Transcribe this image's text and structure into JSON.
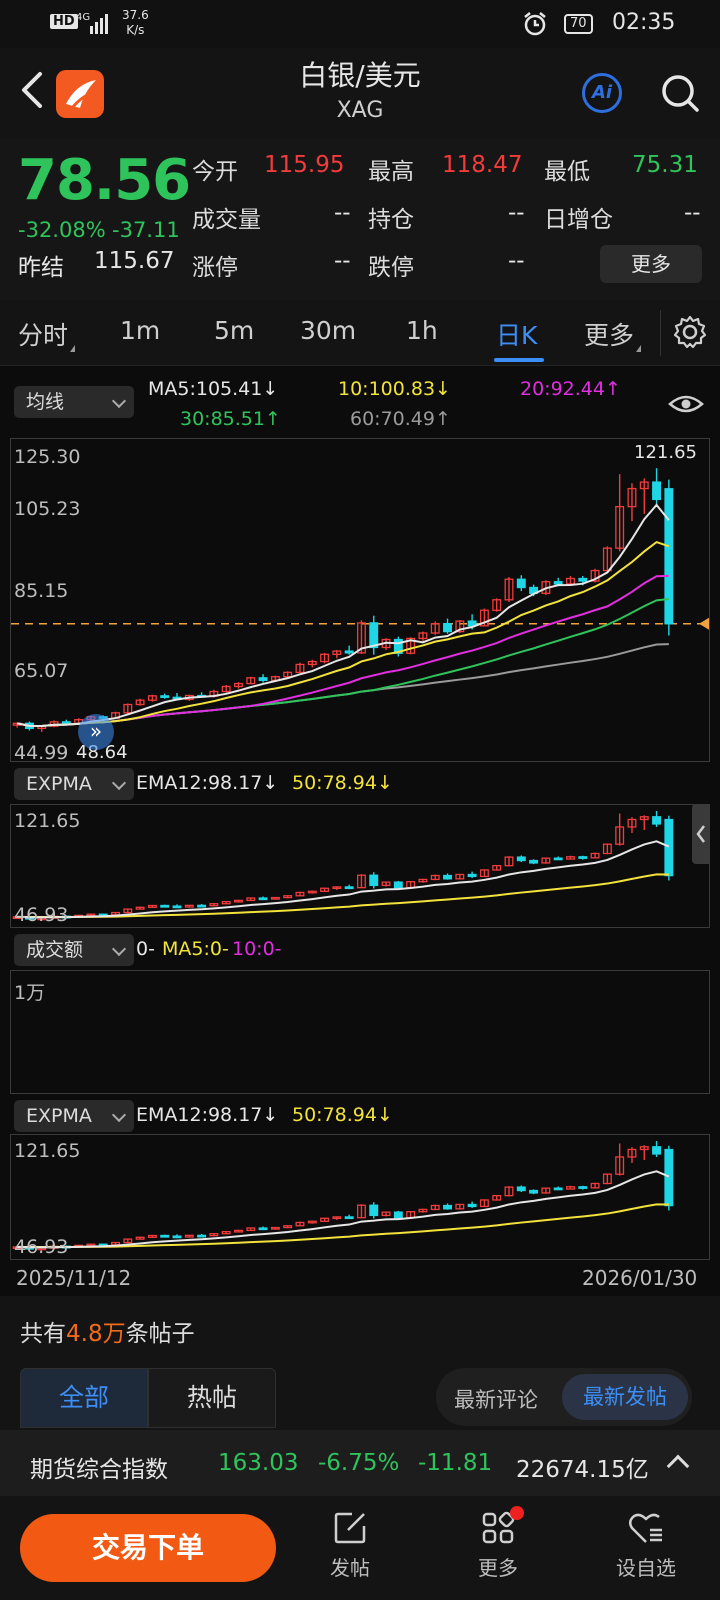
{
  "status_bar": {
    "hd": "HD",
    "network": "4G",
    "speed_value": "37.6",
    "speed_unit": "K/s",
    "battery": "70",
    "time": "02:35"
  },
  "header": {
    "title": "白银/美元",
    "subtitle": "XAG",
    "ai_label": "Ai"
  },
  "quote": {
    "last_price": "78.56",
    "change_pct": "-32.08%",
    "change_abs": "-37.11",
    "prev_close_label": "昨结",
    "prev_close": "115.67",
    "open_label": "今开",
    "open": "115.95",
    "high_label": "最高",
    "high": "118.47",
    "low_label": "最低",
    "low": "75.31",
    "volume_label": "成交量",
    "volume": "--",
    "position_label": "持仓",
    "position": "--",
    "daily_increase_label": "日增仓",
    "daily_increase": "--",
    "limit_up_label": "涨停",
    "limit_up": "--",
    "limit_down_label": "跌停",
    "limit_down": "--",
    "more_label": "更多"
  },
  "tabs": [
    {
      "label": "分时",
      "active": false
    },
    {
      "label": "1m",
      "active": false
    },
    {
      "label": "5m",
      "active": false
    },
    {
      "label": "30m",
      "active": false
    },
    {
      "label": "1h",
      "active": false
    },
    {
      "label": "日K",
      "active": true
    },
    {
      "label": "更多",
      "active": false
    }
  ],
  "main_chart": {
    "selector": "均线",
    "ma5": "MA5:105.41↓",
    "ma10": "10:100.83↓",
    "ma20": "20:92.44↑",
    "ma30": "30:85.51↑",
    "ma60": "60:70.49↑",
    "y_ticks": [
      "125.30",
      "105.23",
      "85.15",
      "65.07",
      "44.99"
    ],
    "high_marker": "121.65",
    "low_marker": "48.64",
    "colors": {
      "up": "#f23c3c",
      "down": "#1fd6e6",
      "ma5": "#e6e6e6",
      "ma10": "#f2e23c",
      "ma20": "#e02ee0",
      "ma30": "#2fc35c",
      "ma60": "#9a9a9a"
    }
  },
  "expma_1": {
    "selector": "EXPMA",
    "ema12": "EMA12:98.17↓",
    "ema50": "50:78.94↓",
    "y_max": "121.65",
    "y_min": "46.93"
  },
  "turnover": {
    "selector": "成交额",
    "val": "0-",
    "ma5": "MA5:0-",
    "ma10": "10:0-",
    "y_label": "1万"
  },
  "expma_2": {
    "selector": "EXPMA",
    "ema12": "EMA12:98.17↓",
    "ema50": "50:78.94↓",
    "y_max": "121.65",
    "y_min": "46.93"
  },
  "date_axis": {
    "start": "2025/11/12",
    "end": "2026/01/30"
  },
  "chart_data": {
    "type": "candlestick",
    "ylim": [
      44.99,
      125.3
    ],
    "last_price_line": 78.56,
    "ohlc": [
      [
        50.5,
        51.2,
        49.8,
        51.0
      ],
      [
        51.0,
        51.5,
        49.0,
        49.6
      ],
      [
        49.6,
        50.4,
        48.64,
        50.2
      ],
      [
        50.2,
        51.8,
        49.9,
        51.4
      ],
      [
        51.4,
        52.0,
        50.6,
        51.0
      ],
      [
        51.0,
        52.4,
        50.8,
        52.0
      ],
      [
        52.0,
        53.1,
        51.6,
        52.8
      ],
      [
        52.8,
        53.2,
        51.9,
        52.4
      ],
      [
        52.4,
        54.2,
        52.2,
        53.9
      ],
      [
        53.9,
        56.5,
        53.5,
        56.2
      ],
      [
        56.2,
        57.8,
        55.9,
        57.4
      ],
      [
        57.4,
        58.9,
        57.0,
        58.6
      ],
      [
        58.6,
        59.2,
        57.8,
        58.2
      ],
      [
        58.2,
        59.4,
        57.3,
        57.6
      ],
      [
        57.6,
        58.9,
        57.2,
        58.7
      ],
      [
        58.7,
        59.6,
        58.2,
        58.5
      ],
      [
        58.5,
        60.3,
        58.1,
        59.8
      ],
      [
        59.8,
        61.6,
        59.5,
        61.2
      ],
      [
        61.2,
        62.4,
        60.6,
        62.0
      ],
      [
        62.0,
        63.9,
        61.8,
        63.6
      ],
      [
        63.6,
        64.6,
        62.3,
        62.9
      ],
      [
        62.9,
        64.2,
        62.6,
        63.9
      ],
      [
        63.9,
        65.4,
        63.4,
        65.1
      ],
      [
        65.1,
        67.8,
        64.9,
        67.3
      ],
      [
        67.3,
        68.6,
        66.5,
        68.1
      ],
      [
        68.1,
        70.5,
        67.6,
        70.1
      ],
      [
        70.1,
        71.3,
        69.0,
        71.0
      ],
      [
        71.0,
        72.5,
        70.0,
        70.5
      ],
      [
        70.5,
        79.5,
        70.2,
        78.8
      ],
      [
        78.8,
        80.8,
        70.0,
        72.0
      ],
      [
        72.0,
        74.6,
        71.3,
        74.2
      ],
      [
        74.2,
        75.0,
        69.5,
        70.4
      ],
      [
        70.4,
        74.8,
        70.1,
        74.5
      ],
      [
        74.5,
        76.4,
        73.8,
        76.0
      ],
      [
        76.0,
        79.2,
        75.5,
        78.6
      ],
      [
        78.6,
        80.0,
        75.8,
        76.4
      ],
      [
        76.4,
        79.6,
        76.0,
        79.3
      ],
      [
        79.3,
        81.2,
        77.0,
        78.0
      ],
      [
        78.0,
        82.8,
        77.8,
        82.3
      ],
      [
        82.3,
        85.6,
        81.9,
        85.2
      ],
      [
        85.2,
        91.5,
        84.6,
        90.9
      ],
      [
        90.9,
        92.0,
        87.6,
        88.6
      ],
      [
        88.6,
        89.4,
        86.2,
        87.0
      ],
      [
        87.0,
        90.6,
        86.5,
        90.2
      ],
      [
        90.2,
        91.3,
        89.0,
        89.6
      ],
      [
        89.6,
        91.8,
        89.3,
        91.1
      ],
      [
        91.1,
        91.8,
        89.2,
        90.4
      ],
      [
        90.4,
        93.8,
        90.0,
        93.3
      ],
      [
        93.3,
        100.0,
        92.8,
        99.5
      ],
      [
        99.5,
        120.0,
        98.6,
        111.0
      ],
      [
        111.0,
        117.5,
        107.0,
        116.0
      ],
      [
        116.0,
        118.8,
        109.0,
        117.8
      ],
      [
        117.8,
        121.65,
        111.0,
        113.0
      ],
      [
        115.95,
        118.47,
        75.31,
        78.56
      ]
    ]
  },
  "posts": {
    "prefix": "共有",
    "count": "4.8万",
    "suffix": "条帖子",
    "tab_all": "全部",
    "tab_hot": "热帖",
    "sort_comment": "最新评论",
    "sort_post": "最新发帖"
  },
  "ticker": {
    "name": "期货综合指数",
    "value": "163.03",
    "pct": "-6.75%",
    "change": "-11.81",
    "turnover": "22674.15亿"
  },
  "bottom_nav": {
    "trade": "交易下单",
    "post": "发帖",
    "more": "更多",
    "watchlist": "设自选"
  }
}
